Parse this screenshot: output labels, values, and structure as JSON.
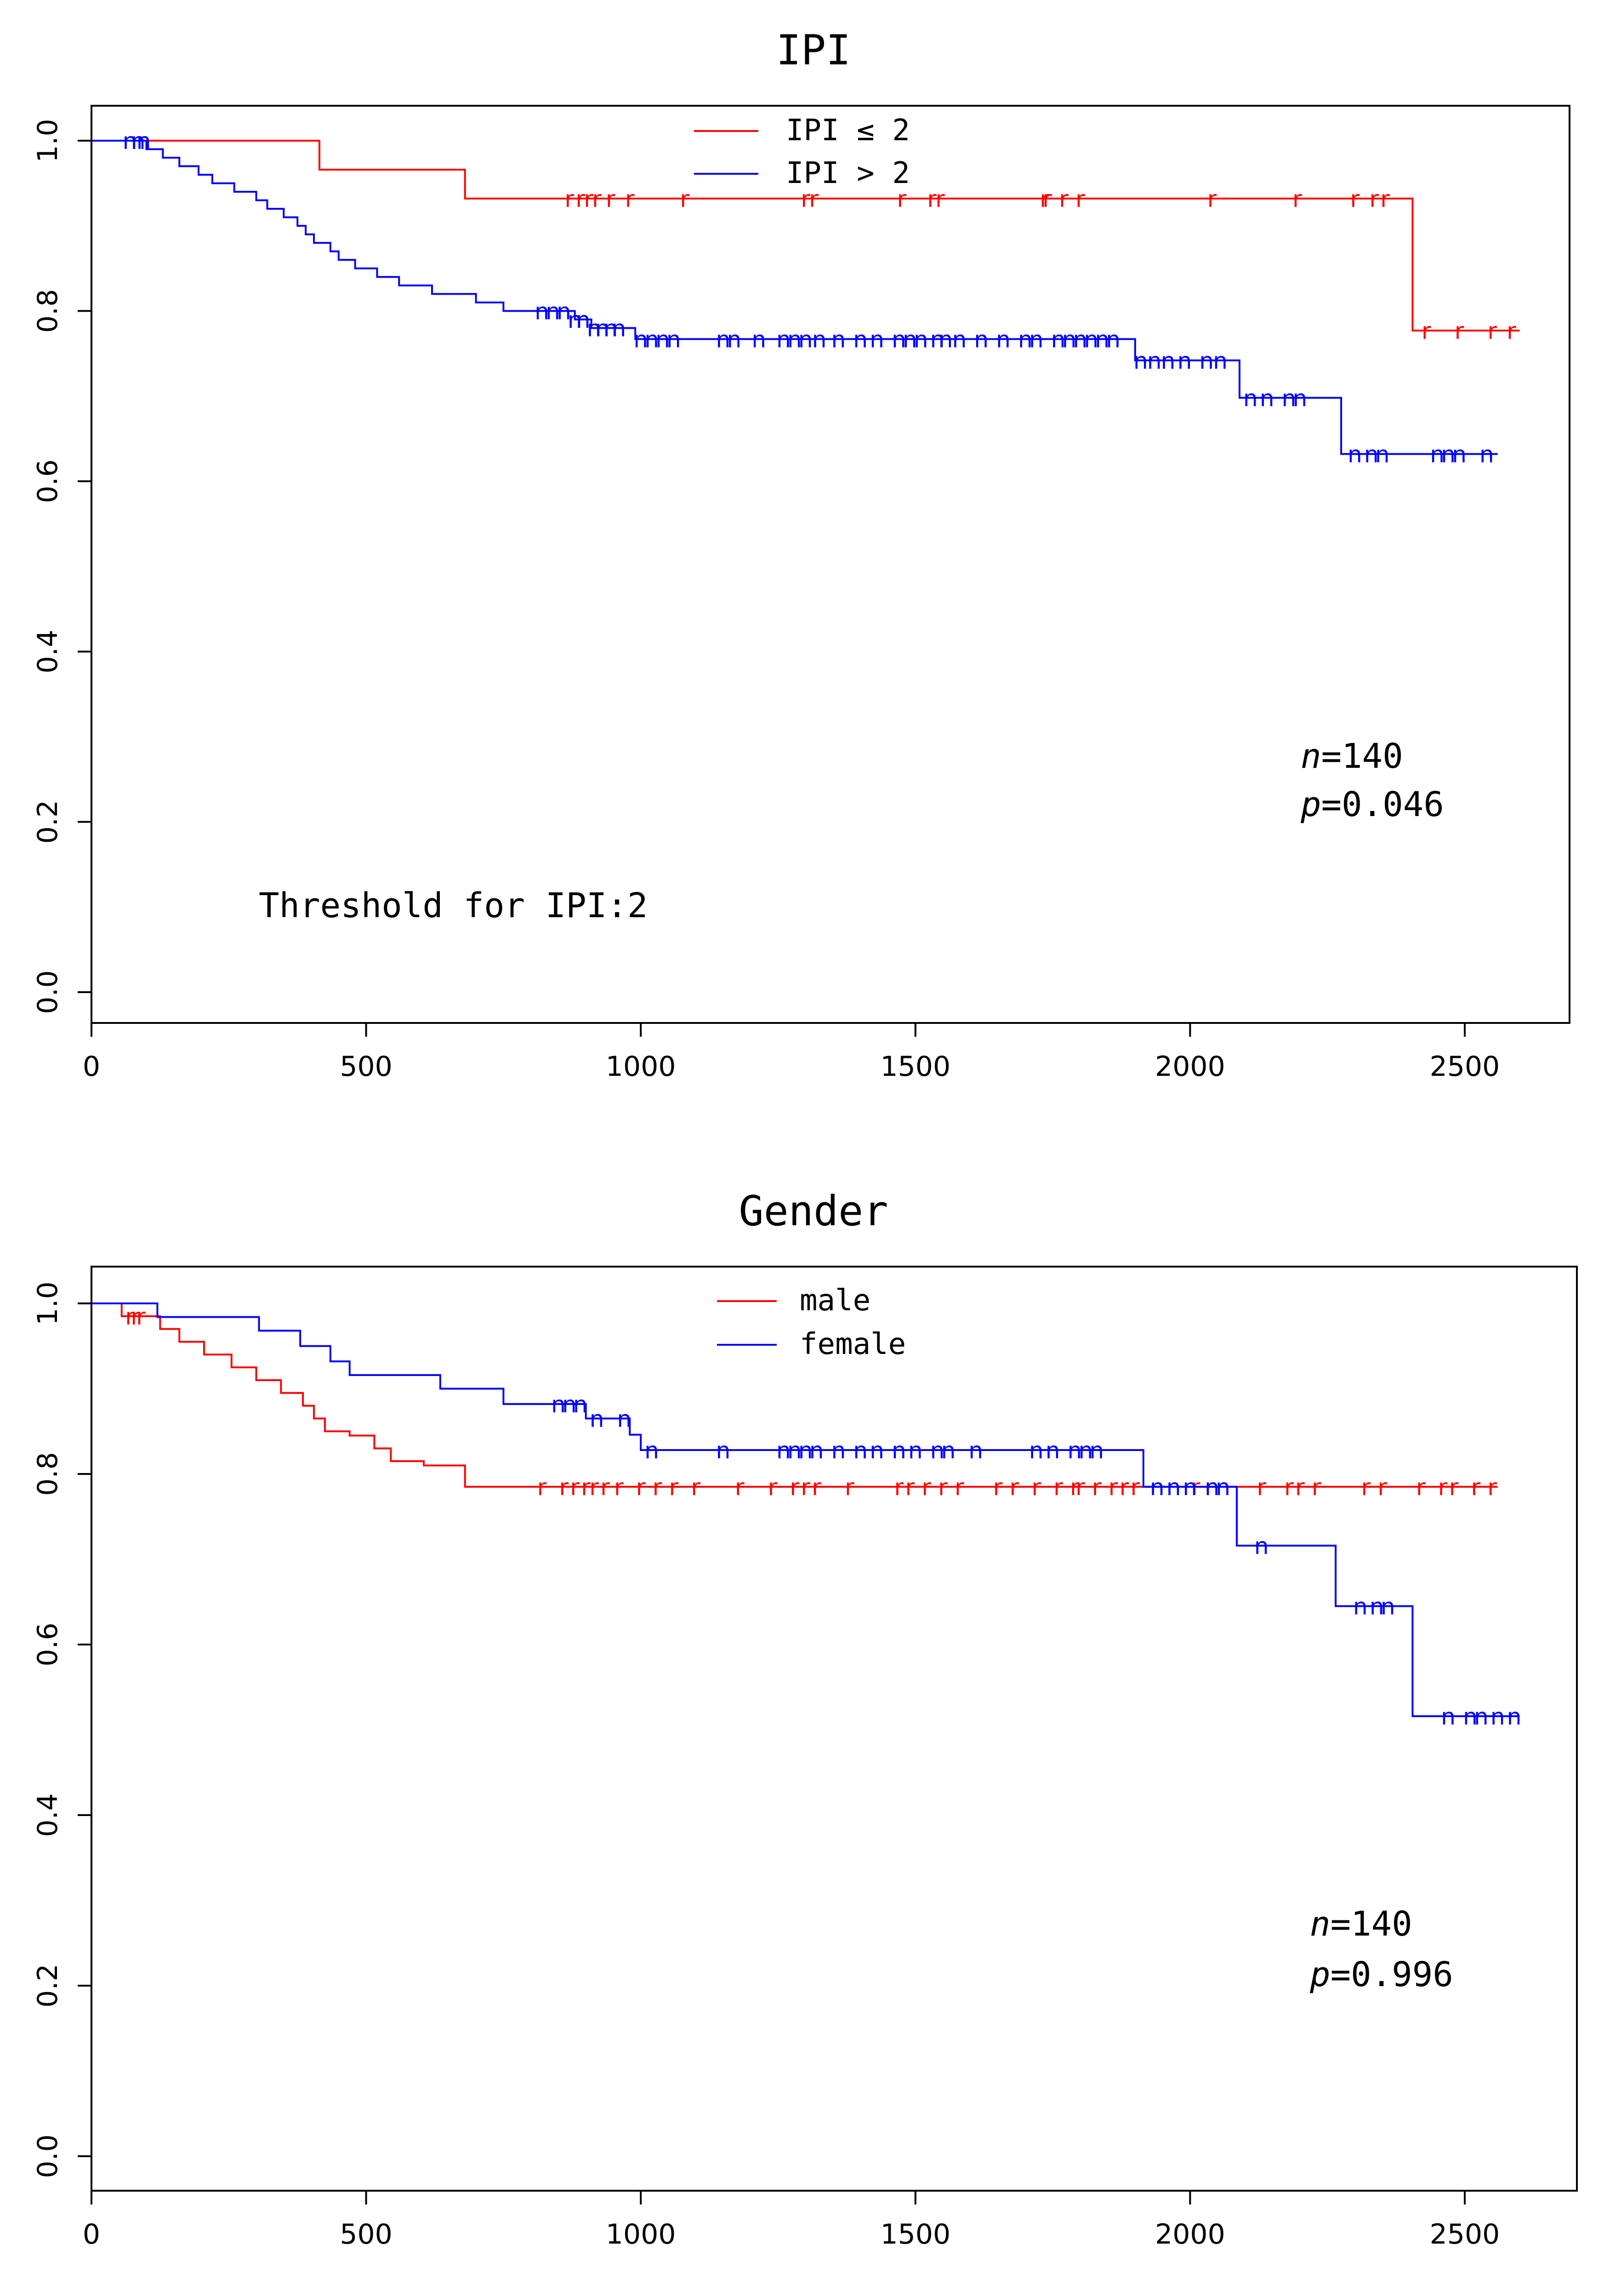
{
  "chart_data": [
    {
      "type": "line",
      "subtype": "kaplan-meier",
      "title": "IPI",
      "xlabel": "",
      "ylabel": "",
      "xlim": [
        0,
        2700
      ],
      "ylim": [
        -0.03,
        1.04
      ],
      "xticks": [
        0,
        500,
        1000,
        1500,
        2000,
        2500
      ],
      "yticks": [
        0.0,
        0.2,
        0.4,
        0.6,
        0.8,
        1.0
      ],
      "xtick_labels": [
        "0",
        "500",
        "1000",
        "1500",
        "2000",
        "2500"
      ],
      "ytick_labels": [
        "0.0",
        "0.2",
        "0.4",
        "0.6",
        "0.8",
        "1.0"
      ],
      "legend_position": "top-center",
      "censor_mark": "r",
      "series": [
        {
          "name": "IPI ≤ 2",
          "color": "#ff0000",
          "censor_symbol": "r",
          "steps": [
            [
              0,
              1.0
            ],
            [
              415,
              0.966
            ],
            [
              680,
              0.932
            ],
            [
              2405,
              0.777
            ],
            [
              2600,
              0.777
            ]
          ],
          "censored": [
            870,
            890,
            905,
            920,
            945,
            980,
            1080,
            1300,
            1315,
            1475,
            1530,
            1545,
            1735,
            1740,
            1770,
            1800,
            2040,
            2195,
            2300,
            2335,
            2355,
            2430,
            2490,
            2550,
            2585
          ]
        },
        {
          "name": "IPI > 2",
          "color": "#0000ff",
          "censor_symbol": "n",
          "steps": [
            [
              0,
              1.0
            ],
            [
              100,
              0.99
            ],
            [
              130,
              0.98
            ],
            [
              160,
              0.97
            ],
            [
              195,
              0.96
            ],
            [
              220,
              0.95
            ],
            [
              260,
              0.94
            ],
            [
              300,
              0.93
            ],
            [
              320,
              0.92
            ],
            [
              350,
              0.91
            ],
            [
              375,
              0.9
            ],
            [
              390,
              0.89
            ],
            [
              405,
              0.88
            ],
            [
              435,
              0.87
            ],
            [
              450,
              0.86
            ],
            [
              480,
              0.85
            ],
            [
              520,
              0.84
            ],
            [
              560,
              0.83
            ],
            [
              620,
              0.82
            ],
            [
              700,
              0.81
            ],
            [
              750,
              0.8
            ],
            [
              880,
              0.79
            ],
            [
              910,
              0.78
            ],
            [
              990,
              0.767
            ],
            [
              1900,
              0.742
            ],
            [
              2090,
              0.698
            ],
            [
              2275,
              0.632
            ],
            [
              2560,
              0.632
            ]
          ],
          "censored": [
            70,
            85,
            95,
            820,
            840,
            860,
            880,
            895,
            915,
            930,
            945,
            960,
            1000,
            1020,
            1040,
            1060,
            1150,
            1170,
            1215,
            1260,
            1280,
            1300,
            1325,
            1360,
            1400,
            1430,
            1470,
            1490,
            1510,
            1540,
            1555,
            1580,
            1620,
            1660,
            1700,
            1720,
            1760,
            1780,
            1800,
            1820,
            1840,
            1860,
            1910,
            1935,
            1960,
            1990,
            2030,
            2055,
            2110,
            2140,
            2180,
            2200,
            2300,
            2330,
            2350,
            2450,
            2470,
            2490,
            2540
          ]
        }
      ],
      "annotations": {
        "n_italic": "n",
        "n_value": "=140",
        "p_italic": "p",
        "p_value": "=0.046",
        "threshold": "Threshold for IPI:2"
      }
    },
    {
      "type": "line",
      "subtype": "kaplan-meier",
      "title": "Gender",
      "xlabel": "",
      "ylabel": "",
      "xlim": [
        0,
        2700
      ],
      "ylim": [
        -0.03,
        1.04
      ],
      "xticks": [
        0,
        500,
        1000,
        1500,
        2000,
        2500
      ],
      "yticks": [
        0.0,
        0.2,
        0.4,
        0.6,
        0.8,
        1.0
      ],
      "xtick_labels": [
        "0",
        "500",
        "1000",
        "1500",
        "2000",
        "2500"
      ],
      "ytick_labels": [
        "0.0",
        "0.2",
        "0.4",
        "0.6",
        "0.8",
        "1.0"
      ],
      "legend_position": "top-center",
      "series": [
        {
          "name": "male",
          "color": "#ff0000",
          "censor_symbol": "r",
          "steps": [
            [
              0,
              1.0
            ],
            [
              55,
              0.985
            ],
            [
              125,
              0.97
            ],
            [
              160,
              0.955
            ],
            [
              205,
              0.94
            ],
            [
              255,
              0.925
            ],
            [
              300,
              0.91
            ],
            [
              345,
              0.895
            ],
            [
              385,
              0.88
            ],
            [
              405,
              0.865
            ],
            [
              425,
              0.85
            ],
            [
              470,
              0.845
            ],
            [
              515,
              0.83
            ],
            [
              545,
              0.815
            ],
            [
              605,
              0.81
            ],
            [
              680,
              0.785
            ],
            [
              2560,
              0.785
            ]
          ],
          "censored": [
            70,
            80,
            90,
            820,
            860,
            880,
            900,
            915,
            935,
            960,
            1000,
            1030,
            1060,
            1100,
            1180,
            1240,
            1280,
            1300,
            1320,
            1380,
            1470,
            1490,
            1520,
            1550,
            1580,
            1650,
            1680,
            1720,
            1760,
            1790,
            1800,
            1830,
            1860,
            1880,
            1900,
            2010,
            2035,
            2130,
            2180,
            2200,
            2230,
            2320,
            2350,
            2420,
            2460,
            2480,
            2520,
            2550
          ]
        },
        {
          "name": "female",
          "color": "#0000ff",
          "censor_symbol": "n",
          "steps": [
            [
              0,
              1.0
            ],
            [
              120,
              0.984
            ],
            [
              305,
              0.968
            ],
            [
              380,
              0.95
            ],
            [
              435,
              0.932
            ],
            [
              470,
              0.916
            ],
            [
              635,
              0.9
            ],
            [
              750,
              0.882
            ],
            [
              900,
              0.865
            ],
            [
              980,
              0.846
            ],
            [
              1000,
              0.828
            ],
            [
              1915,
              0.785
            ],
            [
              2085,
              0.716
            ],
            [
              2265,
              0.645
            ],
            [
              2405,
              0.516
            ],
            [
              2600,
              0.516
            ]
          ],
          "censored": [
            850,
            870,
            890,
            920,
            970,
            1020,
            1150,
            1260,
            1280,
            1300,
            1320,
            1360,
            1400,
            1430,
            1470,
            1500,
            1540,
            1560,
            1610,
            1720,
            1750,
            1790,
            1810,
            1830,
            1940,
            1970,
            2000,
            2040,
            2060,
            2130,
            2310,
            2340,
            2360,
            2470,
            2510,
            2530,
            2560,
            2590
          ]
        }
      ],
      "annotations": {
        "n_italic": "n",
        "n_value": "=140",
        "p_italic": "p",
        "p_value": "=0.996"
      }
    }
  ]
}
